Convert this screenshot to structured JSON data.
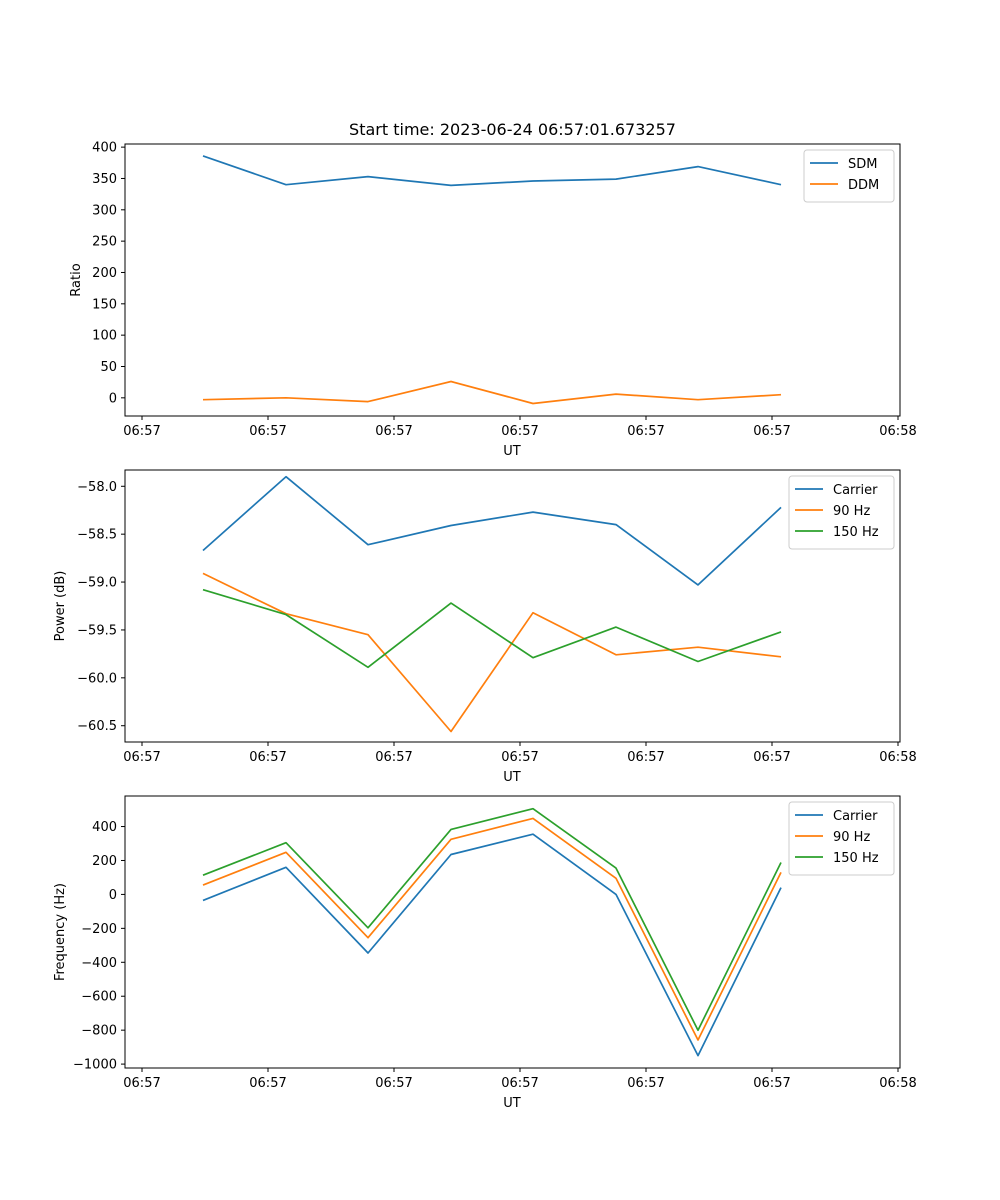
{
  "figure_title": "Start time: 2023-06-24 06:57:01.673257",
  "colors": {
    "blue": "#1f77b4",
    "orange": "#ff7f0e",
    "green": "#2ca02c",
    "axes": "#000000",
    "legend_border": "#cccccc"
  },
  "chart_data": [
    {
      "type": "line",
      "title": "Start time: 2023-06-24 06:57:01.673257",
      "xlabel": "UT",
      "ylabel": "Ratio",
      "x_ticks": [
        "06:57",
        "06:57",
        "06:57",
        "06:57",
        "06:57",
        "06:57",
        "06:58"
      ],
      "y_ticks": [
        "0",
        "50",
        "100",
        "150",
        "200",
        "250",
        "300",
        "350",
        "400"
      ],
      "ylim": [
        -29,
        405
      ],
      "legend_position": "upper right",
      "series": [
        {
          "name": "SDM",
          "color": "#1f77b4",
          "values": [
            386,
            340,
            353,
            339,
            346,
            349,
            369,
            340
          ]
        },
        {
          "name": "DDM",
          "color": "#ff7f0e",
          "values": [
            -3,
            0,
            -6,
            26,
            -9,
            6,
            -3,
            5
          ]
        }
      ]
    },
    {
      "type": "line",
      "xlabel": "UT",
      "ylabel": "Power (dB)",
      "x_ticks": [
        "06:57",
        "06:57",
        "06:57",
        "06:57",
        "06:57",
        "06:57",
        "06:58"
      ],
      "y_ticks": [
        "−58.0",
        "−58.5",
        "−59.0",
        "−59.5",
        "−60.0",
        "−60.5"
      ],
      "ylim": [
        -60.67,
        -57.83
      ],
      "legend_position": "upper right",
      "series": [
        {
          "name": "Carrier",
          "color": "#1f77b4",
          "values": [
            -58.67,
            -57.9,
            -58.61,
            -58.41,
            -58.27,
            -58.4,
            -59.03,
            -58.22
          ]
        },
        {
          "name": "90 Hz",
          "color": "#ff7f0e",
          "values": [
            -58.91,
            -59.33,
            -59.55,
            -60.56,
            -59.32,
            -59.76,
            -59.68,
            -59.78
          ]
        },
        {
          "name": "150 Hz",
          "color": "#2ca02c",
          "values": [
            -59.08,
            -59.34,
            -59.89,
            -59.22,
            -59.79,
            -59.47,
            -59.83,
            -59.52
          ]
        }
      ]
    },
    {
      "type": "line",
      "xlabel": "UT",
      "ylabel": "Frequency (Hz)",
      "x_ticks": [
        "06:57",
        "06:57",
        "06:57",
        "06:57",
        "06:57",
        "06:57",
        "06:58"
      ],
      "y_ticks": [
        "400",
        "200",
        "0",
        "−200",
        "−400",
        "−600",
        "−800",
        "−1000"
      ],
      "ylim": [
        -1023,
        580
      ],
      "legend_position": "upper right",
      "series": [
        {
          "name": "Carrier",
          "color": "#1f77b4",
          "values": [
            -35,
            160,
            -345,
            235,
            355,
            0,
            -950,
            40
          ]
        },
        {
          "name": "90 Hz",
          "color": "#ff7f0e",
          "values": [
            55,
            248,
            -255,
            325,
            448,
            95,
            -858,
            130
          ]
        },
        {
          "name": "150 Hz",
          "color": "#2ca02c",
          "values": [
            113,
            305,
            -197,
            383,
            505,
            155,
            -800,
            188
          ]
        }
      ]
    }
  ]
}
